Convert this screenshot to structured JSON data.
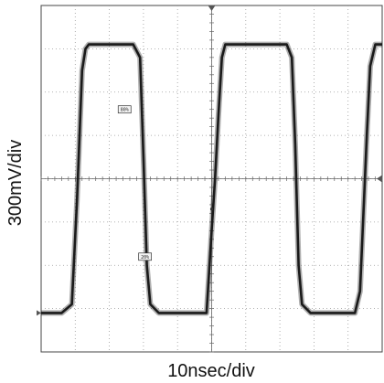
{
  "chart_data": {
    "type": "line",
    "ylabel": "300mV/div",
    "xlabel": "10nsec/div",
    "divisions": {
      "x": 10,
      "y": 8
    },
    "grid": true,
    "xlim_div": [
      0,
      10
    ],
    "ylim_div": [
      -4,
      4
    ],
    "series": [
      {
        "x": [
          0,
          0.6,
          0.9,
          1.05,
          1.2,
          1.3,
          1.4,
          2.7,
          2.9,
          3.0,
          3.1,
          3.2,
          3.45,
          4.85,
          5.0,
          5.1,
          5.2,
          5.3,
          5.4,
          7.2,
          7.35,
          7.45,
          7.55,
          7.65,
          7.9,
          9.2,
          9.35,
          9.45,
          9.55,
          9.65,
          9.8,
          10
        ],
        "y": [
          -3.1,
          -3.1,
          -2.9,
          -0.5,
          2.5,
          3.0,
          3.1,
          3.1,
          2.8,
          0.5,
          -2.0,
          -2.9,
          -3.1,
          -3.1,
          -1.2,
          0.0,
          1.5,
          2.8,
          3.1,
          3.1,
          2.8,
          0.8,
          -2.0,
          -2.9,
          -3.1,
          -3.1,
          -2.6,
          -0.8,
          1.0,
          2.6,
          3.1,
          3.1
        ]
      }
    ],
    "cursors": [
      {
        "label": "80%",
        "x": 2.5,
        "y": 1.6
      },
      {
        "label": "20%",
        "x": 3.1,
        "y": -1.8
      }
    ],
    "colors": {
      "trace": "#1a1a1a",
      "grid": "#9a9a9a",
      "background": "#ffffff"
    }
  }
}
